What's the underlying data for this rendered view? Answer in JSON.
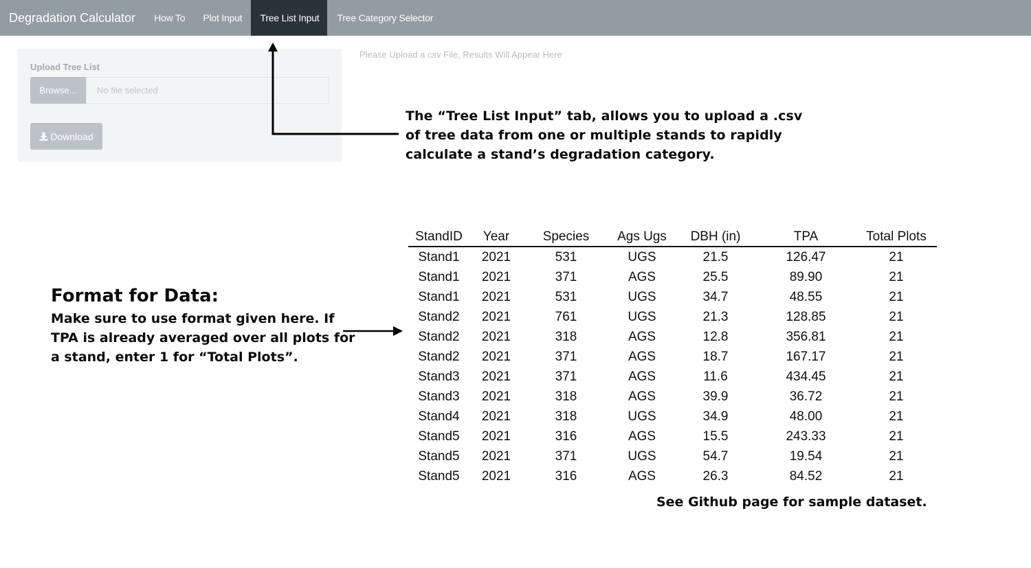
{
  "navbar": {
    "brand": "Degradation Calculator",
    "tabs": [
      {
        "label": "How To"
      },
      {
        "label": "Plot Input"
      },
      {
        "label": "Tree List Input"
      },
      {
        "label": "Tree Category Selector"
      }
    ],
    "active_tab": "Tree List Input"
  },
  "sidebar": {
    "upload_label": "Upload Tree List",
    "browse_label": "Browse...",
    "file_placeholder": "No file selected",
    "download_label": "Download"
  },
  "main": {
    "results_placeholder": "Please Upload a csv File,  Results Will Appear Here"
  },
  "annotations": {
    "tab_note_lines": [
      "The “Tree List Input” tab, allows you to upload a .csv",
      "of tree data from one or multiple stands to rapidly",
      "calculate a stand’s degradation category."
    ],
    "format_heading": "Format for Data:",
    "format_lines": [
      "Make sure to use format given here. If",
      "TPA is already averaged over all plots for",
      "a stand, enter 1 for “Total Plots”."
    ],
    "github_note": "See Github page for sample dataset."
  },
  "sample_table": {
    "headers": [
      "StandID",
      "Year",
      "Species",
      "Ags Ugs",
      "DBH (in)",
      "TPA",
      "Total Plots"
    ],
    "rows": [
      [
        "Stand1",
        "2021",
        "531",
        "UGS",
        "21.5",
        "126.47",
        "21"
      ],
      [
        "Stand1",
        "2021",
        "371",
        "AGS",
        "25.5",
        "89.90",
        "21"
      ],
      [
        "Stand1",
        "2021",
        "531",
        "UGS",
        "34.7",
        "48.55",
        "21"
      ],
      [
        "Stand2",
        "2021",
        "761",
        "UGS",
        "21.3",
        "128.85",
        "21"
      ],
      [
        "Stand2",
        "2021",
        "318",
        "AGS",
        "12.8",
        "356.81",
        "21"
      ],
      [
        "Stand2",
        "2021",
        "371",
        "AGS",
        "18.7",
        "167.17",
        "21"
      ],
      [
        "Stand3",
        "2021",
        "371",
        "AGS",
        "11.6",
        "434.45",
        "21"
      ],
      [
        "Stand3",
        "2021",
        "318",
        "AGS",
        "39.9",
        "36.72",
        "21"
      ],
      [
        "Stand4",
        "2021",
        "318",
        "UGS",
        "34.9",
        "48.00",
        "21"
      ],
      [
        "Stand5",
        "2021",
        "316",
        "AGS",
        "15.5",
        "243.33",
        "21"
      ],
      [
        "Stand5",
        "2021",
        "371",
        "UGS",
        "54.7",
        "19.54",
        "21"
      ],
      [
        "Stand5",
        "2021",
        "316",
        "AGS",
        "26.3",
        "84.52",
        "21"
      ]
    ]
  },
  "colors": {
    "navbar_bg": "#939ba3",
    "active_tab_bg": "#2a333c",
    "panel_bg": "#f3f4f5",
    "button_bg": "#bcc3c7"
  },
  "icons": {
    "download": "download-icon",
    "arrow_up": "arrow-up-icon",
    "arrow_right": "arrow-right-icon"
  }
}
